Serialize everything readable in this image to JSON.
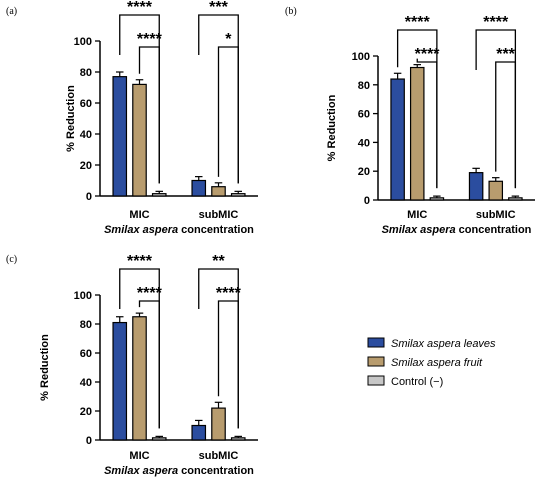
{
  "colors": {
    "leaves": "#2b4d9f",
    "fruit": "#b89c6e",
    "control": "#c7c7c7",
    "outline": "#000000"
  },
  "legend": [
    {
      "label": "Smilax aspera leaves",
      "color": "#2b4d9f",
      "italic": true
    },
    {
      "label": "Smilax aspera fruit",
      "color": "#b89c6e",
      "italic": true
    },
    {
      "label": "Control (−)",
      "color": "#c7c7c7",
      "italic": false
    }
  ],
  "chart_data": [
    {
      "panel_label": "(a)",
      "type": "bar",
      "categories": [
        "MIC",
        "subMIC"
      ],
      "series": [
        {
          "name": "Smilax aspera leaves",
          "values": [
            77,
            10
          ],
          "errors": [
            3,
            2.5
          ]
        },
        {
          "name": "Smilax aspera fruit",
          "values": [
            72,
            6
          ],
          "errors": [
            3,
            2.5
          ]
        },
        {
          "name": "Control (−)",
          "values": [
            1.5,
            1.5
          ],
          "errors": [
            1.5,
            1.5
          ]
        }
      ],
      "ylabel": "% Reduction",
      "xlabel_italic": "Smilax aspera",
      "xlabel_rest": " concentration",
      "ylim": [
        0,
        100
      ],
      "yticks": [
        0,
        20,
        40,
        60,
        80,
        100
      ],
      "significance": [
        {
          "category": 0,
          "from": 0,
          "to": 2,
          "label": "****",
          "level": "high"
        },
        {
          "category": 0,
          "from": 1,
          "to": 2,
          "label": "****",
          "level": "low"
        },
        {
          "category": 1,
          "from": 0,
          "to": 2,
          "label": "***",
          "level": "high"
        },
        {
          "category": 1,
          "from": 1,
          "to": 2,
          "label": "*",
          "level": "low"
        }
      ]
    },
    {
      "panel_label": "(b)",
      "type": "bar",
      "categories": [
        "MIC",
        "subMIC"
      ],
      "series": [
        {
          "name": "Smilax aspera leaves",
          "values": [
            84,
            19
          ],
          "errors": [
            4,
            3
          ]
        },
        {
          "name": "Smilax aspera fruit",
          "values": [
            92,
            13
          ],
          "errors": [
            2,
            2.5
          ]
        },
        {
          "name": "Control (−)",
          "values": [
            1.5,
            1.5
          ],
          "errors": [
            1.2,
            1.2
          ]
        }
      ],
      "ylabel": "% Reduction",
      "xlabel_italic": "Smilax aspera",
      "xlabel_rest": " concentration",
      "ylim": [
        0,
        100
      ],
      "yticks": [
        0,
        20,
        40,
        60,
        80,
        100
      ],
      "significance": [
        {
          "category": 0,
          "from": 0,
          "to": 2,
          "label": "****",
          "level": "high"
        },
        {
          "category": 0,
          "from": 1,
          "to": 2,
          "label": "****",
          "level": "low"
        },
        {
          "category": 1,
          "from": 0,
          "to": 2,
          "label": "****",
          "level": "high"
        },
        {
          "category": 1,
          "from": 1,
          "to": 2,
          "label": "***",
          "level": "low"
        }
      ]
    },
    {
      "panel_label": "(c)",
      "type": "bar",
      "categories": [
        "MIC",
        "subMIC"
      ],
      "series": [
        {
          "name": "Smilax aspera leaves",
          "values": [
            81,
            10
          ],
          "errors": [
            4,
            3.5
          ]
        },
        {
          "name": "Smilax aspera fruit",
          "values": [
            85,
            22
          ],
          "errors": [
            2.5,
            4
          ]
        },
        {
          "name": "Control (−)",
          "values": [
            1.5,
            1.5
          ],
          "errors": [
            1,
            1
          ]
        }
      ],
      "ylabel": "% Reduction",
      "xlabel_italic": "Smilax aspera",
      "xlabel_rest": " concentration",
      "ylim": [
        0,
        100
      ],
      "yticks": [
        0,
        20,
        40,
        60,
        80,
        100
      ],
      "significance": [
        {
          "category": 0,
          "from": 0,
          "to": 2,
          "label": "****",
          "level": "high"
        },
        {
          "category": 0,
          "from": 1,
          "to": 2,
          "label": "****",
          "level": "low"
        },
        {
          "category": 1,
          "from": 0,
          "to": 2,
          "label": "**",
          "level": "high"
        },
        {
          "category": 1,
          "from": 1,
          "to": 2,
          "label": "****",
          "level": "low"
        }
      ]
    }
  ]
}
